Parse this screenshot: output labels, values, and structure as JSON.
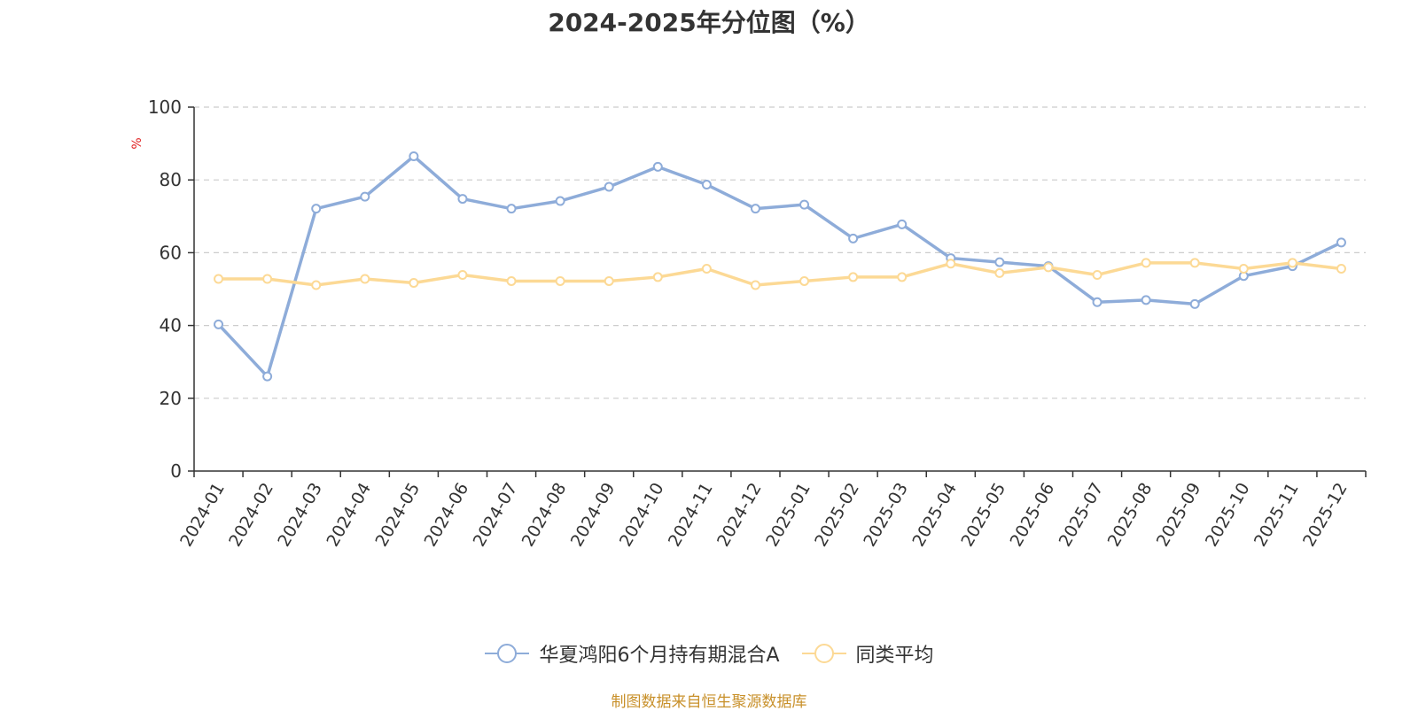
{
  "chart_data": {
    "type": "line",
    "title": "2024-2025年分位图（%）",
    "ylabel": "%",
    "ylim": [
      0,
      100
    ],
    "yticks": [
      "0",
      "20",
      "40",
      "60",
      "80",
      "100"
    ],
    "grid": true,
    "legend_position": "bottom",
    "categories": [
      "2024-01",
      "2024-02",
      "2024-03",
      "2024-04",
      "2024-05",
      "2024-06",
      "2024-07",
      "2024-08",
      "2024-09",
      "2024-10",
      "2024-11",
      "2024-12",
      "2025-01",
      "2025-02",
      "2025-03",
      "2025-04",
      "2025-05",
      "2025-06",
      "2025-07",
      "2025-08",
      "2025-09",
      "2025-10",
      "2025-11",
      "2025-12"
    ],
    "series": [
      {
        "name": "华夏鸿阳6个月持有期混合A",
        "color": "#8eacd9",
        "values": [
          40.3,
          26.0,
          72.1,
          75.4,
          86.5,
          74.8,
          72.1,
          74.2,
          78.1,
          83.6,
          78.7,
          72.1,
          73.2,
          63.9,
          67.8,
          58.5,
          57.4,
          56.3,
          46.4,
          47.0,
          45.9,
          53.6,
          56.3,
          62.8
        ]
      },
      {
        "name": "同类平均",
        "color": "#fcd995",
        "values": [
          52.8,
          52.8,
          51.1,
          52.8,
          51.7,
          53.9,
          52.2,
          52.2,
          52.2,
          53.3,
          55.6,
          51.1,
          52.2,
          53.3,
          53.3,
          57.0,
          54.4,
          56.0,
          53.9,
          57.2,
          57.2,
          55.6,
          57.2,
          55.6
        ]
      }
    ]
  },
  "source_note": "制图数据来自恒生聚源数据库"
}
